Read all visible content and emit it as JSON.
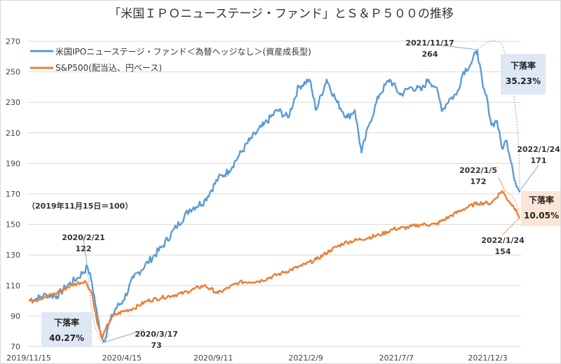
{
  "chart_data": {
    "type": "line",
    "title": "「米国ＩＰＯニューステージ・ファンド」とＳ＆Ｐ５００の推移",
    "note": "（2019年11月15日＝100）",
    "x_unit": "days since 2019/11/15",
    "xticks": [
      {
        "day": 0,
        "label": "2019/11/15"
      },
      {
        "day": 152,
        "label": "2020/4/15"
      },
      {
        "day": 301,
        "label": "2020/9/11"
      },
      {
        "day": 452,
        "label": "2021/2/9"
      },
      {
        "day": 600,
        "label": "2021/7/7"
      },
      {
        "day": 749,
        "label": "2021/12/3"
      }
    ],
    "ylim": [
      70,
      270
    ],
    "yticks": [
      70,
      90,
      110,
      130,
      150,
      170,
      190,
      210,
      230,
      250,
      270
    ],
    "legend": "top-left",
    "series": [
      {
        "name": "米国IPOニューステージ・ファンド＜為替ヘッジなし＞(資産成長型)",
        "color": "#5b9bd5",
        "x": [
          0,
          17,
          29,
          46,
          63,
          80,
          96,
          103,
          112,
          117,
          122,
          131,
          142,
          154,
          171,
          194,
          217,
          240,
          263,
          286,
          309,
          326,
          343,
          360,
          383,
          406,
          423,
          440,
          458,
          469,
          486,
          503,
          520,
          532,
          543,
          555,
          572,
          589,
          606,
          624,
          641,
          652,
          664,
          675,
          686,
          698,
          709,
          721,
          732,
          741,
          749,
          755,
          764,
          772,
          780,
          788,
          794,
          801
        ],
        "values": [
          100,
          102,
          104,
          103,
          110,
          115,
          122,
          112,
          90,
          80,
          73,
          85,
          95,
          100,
          115,
          125,
          135,
          148,
          160,
          165,
          180,
          185,
          195,
          205,
          215,
          225,
          220,
          240,
          245,
          225,
          245,
          230,
          220,
          225,
          197,
          215,
          235,
          245,
          235,
          240,
          238,
          245,
          240,
          225,
          232,
          235,
          250,
          255,
          264,
          240,
          230,
          215,
          218,
          200,
          205,
          190,
          178,
          171
        ]
      },
      {
        "name": "S&P500(配当込、円ベース)",
        "color": "#ed7d31",
        "x": [
          0,
          23,
          46,
          69,
          92,
          103,
          112,
          120,
          126,
          137,
          154,
          171,
          194,
          217,
          252,
          286,
          309,
          343,
          378,
          412,
          446,
          469,
          492,
          515,
          538,
          572,
          595,
          618,
          641,
          664,
          686,
          709,
          732,
          755,
          772,
          784,
          795,
          801
        ],
        "values": [
          100,
          102,
          105,
          110,
          113,
          105,
          85,
          75,
          82,
          90,
          93,
          95,
          100,
          102,
          105,
          110,
          105,
          112,
          113,
          118,
          123,
          127,
          133,
          138,
          140,
          143,
          147,
          148,
          150,
          150,
          155,
          160,
          164,
          164,
          172,
          165,
          160,
          154
        ]
      }
    ],
    "annotations": [
      {
        "date": "2020/2/21",
        "value": "122"
      },
      {
        "date": "2020/3/17",
        "value": "73"
      },
      {
        "date": "2021/11/17",
        "value": "264"
      },
      {
        "date": "2022/1/24",
        "value": "171"
      },
      {
        "date": "2022/1/5",
        "value": "172"
      },
      {
        "date": "2022/1/24",
        "value": "154"
      }
    ],
    "callouts": [
      {
        "label": "下落率",
        "value": "40.27%"
      },
      {
        "label": "下落率",
        "value": "35.23%"
      },
      {
        "label": "下落率",
        "value": "10.05%"
      }
    ]
  }
}
